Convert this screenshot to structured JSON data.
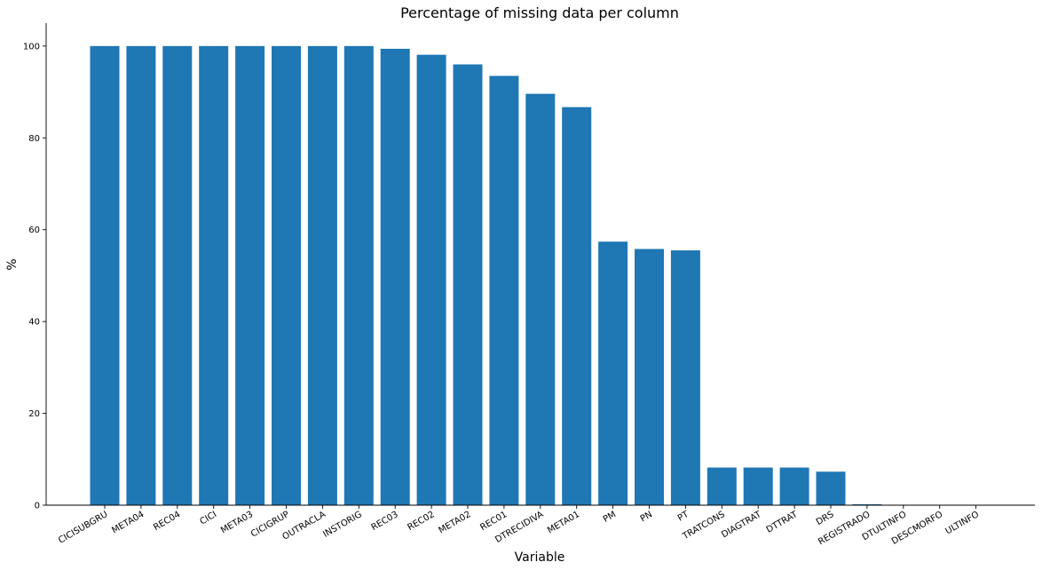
{
  "chart_data": {
    "type": "bar",
    "title": "Percentage of missing data per column",
    "xlabel": "Variable",
    "ylabel": "%",
    "ylim": [
      0,
      105
    ],
    "yticks": [
      0,
      20,
      40,
      60,
      80,
      100
    ],
    "grid": false,
    "bar_color": "#1f77b4",
    "categories": [
      "CICISUBGRU",
      "META04",
      "REC04",
      "CICI",
      "META03",
      "CICIGRUP",
      "OUTRACLA",
      "INSTORIG",
      "REC03",
      "REC02",
      "META02",
      "REC01",
      "DTRECIDIVA",
      "META01",
      "PM",
      "PN",
      "PT",
      "TRATCONS",
      "DIAGTRAT",
      "DTTRAT",
      "DRS",
      "REGISTRADO",
      "DTULTINFO",
      "DESCMORFO",
      "ULTINFO"
    ],
    "values": [
      100,
      100,
      100,
      100,
      100,
      100,
      100,
      100,
      99.4,
      98.1,
      96.0,
      93.5,
      89.6,
      86.7,
      57.4,
      55.8,
      55.5,
      8.2,
      8.2,
      8.2,
      7.3,
      0.2,
      0.0,
      0.0,
      0.0
    ]
  }
}
